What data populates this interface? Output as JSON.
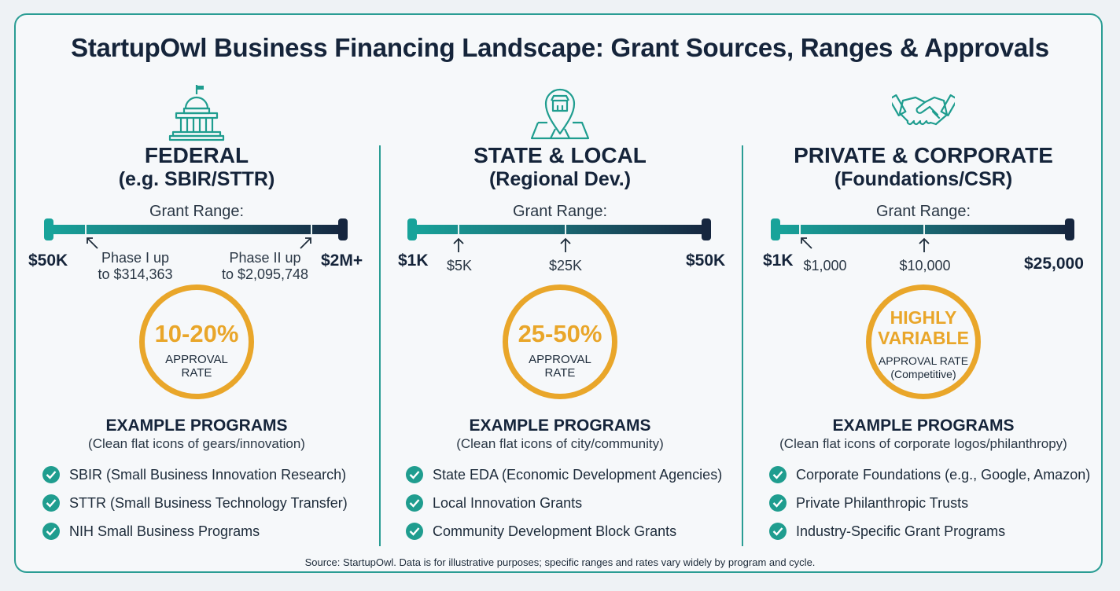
{
  "title": "StartupOwl Business Financing Landscape: Grant Sources, Ranges & Approvals",
  "grant_range_label": "Grant Range:",
  "approval_rate_label": "APPROVAL RATE",
  "example_programs_label": "EXAMPLE PROGRAMS",
  "colors": {
    "teal": "#18a39a",
    "navy": "#16263f",
    "gold": "#e9a62a",
    "check": "#1f9d8f"
  },
  "columns": [
    {
      "icon": "capitol-building-icon",
      "name": "FEDERAL",
      "sub": "(e.g. SBIR/STTR)",
      "range_min": "$50K",
      "range_max": "$2M+",
      "markers": [
        {
          "line1": "Phase I up",
          "line2": "to $314,363"
        },
        {
          "line1": "Phase II up",
          "line2": "to $2,095,748"
        }
      ],
      "rate_value": "10-20%",
      "rate_caption": "APPROVAL RATE",
      "example_note": "(Clean flat icons of gears/innovation)",
      "programs": [
        "SBIR (Small Business Innovation Research)",
        "STTR (Small Business Technology Transfer)",
        "NIH Small Business Programs"
      ]
    },
    {
      "icon": "map-pin-storefront-icon",
      "name": "STATE & LOCAL",
      "sub": "(Regional Dev.)",
      "range_min": "$1K",
      "range_max": "$50K",
      "markers": [
        {
          "line1": "$5K"
        },
        {
          "line1": "$25K"
        }
      ],
      "rate_value": "25-50%",
      "rate_caption": "APPROVAL RATE",
      "example_note": "(Clean flat icons of city/community)",
      "programs": [
        "State EDA (Economic Development Agencies)",
        "Local Innovation Grants",
        "Community Development Block Grants"
      ]
    },
    {
      "icon": "handshake-icon",
      "name": "PRIVATE & CORPORATE",
      "sub": "(Foundations/CSR)",
      "range_min": "$1K",
      "range_max": "$25,000",
      "markers": [
        {
          "line1": "$1,000"
        },
        {
          "line1": "$10,000"
        }
      ],
      "rate_value_1": "HIGHLY",
      "rate_value_2": "VARIABLE",
      "rate_caption": "APPROVAL RATE",
      "rate_caption_2": "(Competitive)",
      "example_note": "(Clean flat icons of corporate logos/philanthropy)",
      "programs": [
        "Corporate Foundations (e.g., Google, Amazon)",
        "Private Philanthropic Trusts",
        "Industry-Specific Grant Programs"
      ]
    }
  ],
  "source": "Source: StartupOwl. Data is for illustrative purposes; specific ranges and rates vary widely by program and cycle."
}
